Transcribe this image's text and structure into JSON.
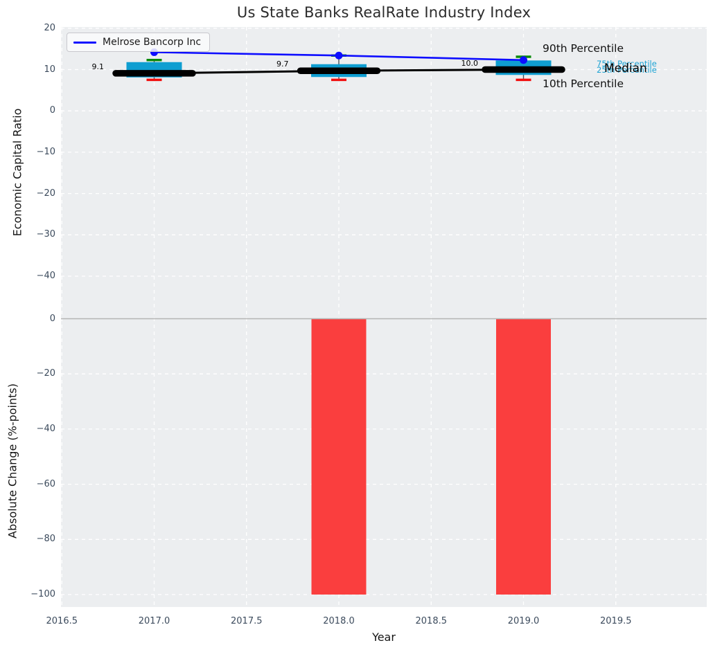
{
  "title": "Us State Banks RealRate Industry Index",
  "legend": {
    "label": "Melrose Bancorp Inc"
  },
  "annotations": {
    "p90": "90th Percentile",
    "p75": "75th Percentile",
    "p25": "25th Percentile",
    "median": "Median",
    "p10": "10th Percentile"
  },
  "colors": {
    "plot_background": "#eceef0",
    "grid": "#ffffff",
    "box_fill": "#0f9ed1",
    "whisker": "#42505a",
    "cap_90": "#0a8a0a",
    "cap_10": "#f10e0e",
    "median_line": "#000000",
    "melrose_line": "#0d0dff",
    "bar_fill": "#fa3e3e",
    "zero_line": "#b4b4b4",
    "tick_label": "#3b4a5c",
    "percentile_text": "#1ba3d4"
  },
  "chart_data": {
    "type": "combo",
    "xlabel": "Year",
    "xticks": [
      "2016.5",
      "2017.0",
      "2017.5",
      "2018.0",
      "2018.5",
      "2019.0",
      "2019.5"
    ],
    "xlim": [
      2016.49,
      2020.0
    ],
    "subplots": [
      {
        "type": "boxplot+line",
        "ylabel": "Economic Capital Ratio",
        "ylim": [
          -50.2,
          20.4
        ],
        "yticks": [
          "20",
          "10",
          "0",
          "−10",
          "−20",
          "−30",
          "−40"
        ],
        "years": [
          2017,
          2018,
          2019
        ],
        "series": [
          {
            "name": "Melrose Bancorp Inc",
            "role": "company-line",
            "values": [
              14.2,
              13.4,
              12.3
            ]
          },
          {
            "name": "90th Percentile",
            "role": "whisker-top-cap",
            "values": [
              12.3,
              13.4,
              13.1
            ]
          },
          {
            "name": "75th Percentile",
            "role": "box-top",
            "values": [
              11.8,
              11.3,
              12.2
            ]
          },
          {
            "name": "Median",
            "role": "median-line",
            "values": [
              9.1,
              9.7,
              10.0
            ]
          },
          {
            "name": "25th Percentile",
            "role": "box-bottom",
            "values": [
              8.1,
              8.2,
              8.7
            ]
          },
          {
            "name": "10th Percentile",
            "role": "whisker-bottom-cap",
            "values": [
              7.5,
              7.5,
              7.5
            ]
          }
        ],
        "median_labels": [
          "9.1",
          "9.7",
          "10.0"
        ]
      },
      {
        "type": "bar",
        "ylabel": "Absolute Change (%-points)",
        "ylim": [
          -104.6,
          0.4
        ],
        "yticks": [
          "0",
          "−20",
          "−40",
          "−60",
          "−80",
          "−100"
        ],
        "years": [
          2017,
          2018,
          2019
        ],
        "values": [
          null,
          -100,
          -100
        ]
      }
    ]
  }
}
